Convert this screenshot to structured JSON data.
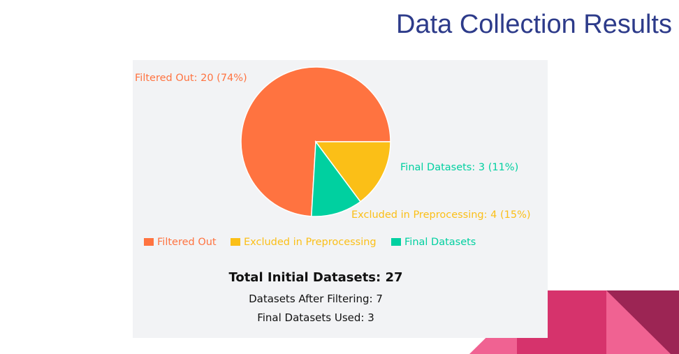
{
  "slide": {
    "title": "Data Collection Results"
  },
  "chart_data": {
    "type": "pie",
    "slices": [
      {
        "name": "Filtered Out",
        "value": 20,
        "percent": 74,
        "color": "#ff7340",
        "label": "Filtered Out: 20 (74%)"
      },
      {
        "name": "Excluded in Preprocessing",
        "value": 4,
        "percent": 15,
        "color": "#fbbf17",
        "label": "Excluded in Preprocessing: 4 (15%)"
      },
      {
        "name": "Final Datasets",
        "value": 3,
        "percent": 11,
        "color": "#00d0a0",
        "label": "Final Datasets: 3 (11%)"
      }
    ],
    "legend": {
      "placement": "bottom",
      "items": [
        "Filtered Out",
        "Excluded in Preprocessing",
        "Final Datasets"
      ]
    }
  },
  "summary": {
    "total": "Total Initial Datasets: 27",
    "after_filtering": "Datasets After Filtering: 7",
    "final_used": "Final Datasets Used: 3"
  },
  "decoration": {
    "colors": [
      "#f06292",
      "#d6336c",
      "#9c2554"
    ]
  }
}
